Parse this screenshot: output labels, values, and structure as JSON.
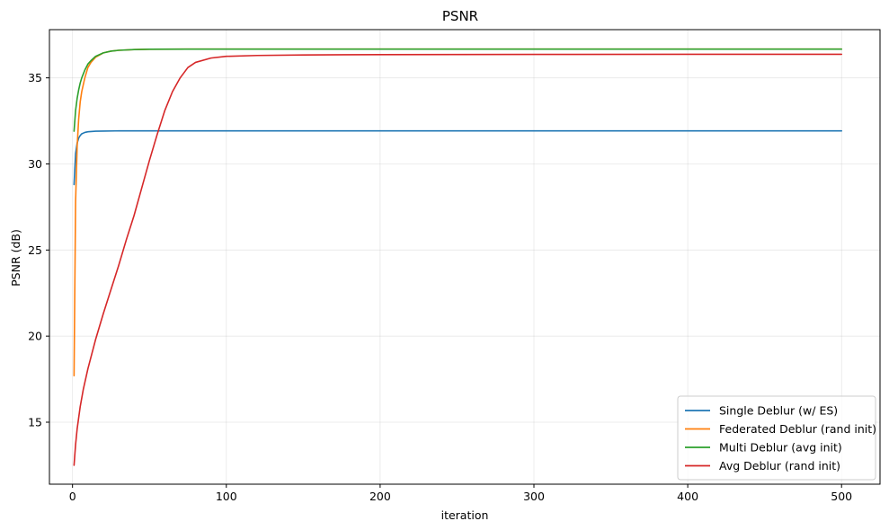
{
  "chart_data": {
    "type": "line",
    "title": "PSNR",
    "xlabel": "iteration",
    "ylabel": "PSNR (dB)",
    "xlim": [
      -15,
      525
    ],
    "ylim": [
      11.4,
      37.8
    ],
    "xticks": [
      0,
      100,
      200,
      300,
      400,
      500
    ],
    "yticks": [
      15,
      20,
      25,
      30,
      35
    ],
    "grid": true,
    "legend_position": "bottom-right",
    "series": [
      {
        "name": "Single Deblur (w/ ES)",
        "color": "#1f77b4",
        "x": [
          1,
          2,
          3,
          4,
          5,
          6,
          8,
          10,
          15,
          20,
          30,
          50,
          100,
          200,
          300,
          400,
          500
        ],
        "y": [
          28.8,
          30.6,
          31.2,
          31.5,
          31.65,
          31.75,
          31.83,
          31.87,
          31.9,
          31.91,
          31.92,
          31.92,
          31.92,
          31.92,
          31.92,
          31.92,
          31.92
        ]
      },
      {
        "name": "Federated Deblur (rand init)",
        "color": "#ff7f0e",
        "x": [
          1,
          2,
          3,
          4,
          5,
          6,
          8,
          10,
          12,
          15,
          20,
          25,
          30,
          40,
          50,
          75,
          100,
          200,
          300,
          400,
          500
        ],
        "y": [
          17.7,
          27.8,
          31.0,
          32.6,
          33.6,
          34.2,
          35.0,
          35.6,
          35.9,
          36.2,
          36.45,
          36.55,
          36.6,
          36.64,
          36.66,
          36.67,
          36.67,
          36.67,
          36.67,
          36.67,
          36.67
        ]
      },
      {
        "name": "Multi Deblur (avg init)",
        "color": "#2ca02c",
        "x": [
          1,
          2,
          3,
          4,
          5,
          6,
          8,
          10,
          12,
          15,
          20,
          25,
          30,
          40,
          50,
          75,
          100,
          200,
          300,
          400,
          500
        ],
        "y": [
          31.9,
          33.1,
          33.8,
          34.3,
          34.7,
          35.0,
          35.45,
          35.8,
          36.0,
          36.25,
          36.45,
          36.55,
          36.6,
          36.64,
          36.66,
          36.67,
          36.67,
          36.67,
          36.67,
          36.67,
          36.67
        ]
      },
      {
        "name": "Avg Deblur (rand init)",
        "color": "#d62728",
        "x": [
          1,
          2,
          3,
          5,
          7,
          10,
          15,
          20,
          25,
          30,
          35,
          40,
          45,
          50,
          55,
          60,
          65,
          70,
          75,
          80,
          90,
          100,
          120,
          150,
          200,
          300,
          400,
          500
        ],
        "y": [
          12.5,
          13.7,
          14.6,
          15.9,
          16.9,
          18.1,
          19.8,
          21.3,
          22.7,
          24.1,
          25.6,
          27.0,
          28.6,
          30.2,
          31.7,
          33.1,
          34.2,
          35.0,
          35.6,
          35.9,
          36.15,
          36.25,
          36.3,
          36.33,
          36.35,
          36.36,
          36.37,
          36.37
        ]
      }
    ]
  }
}
